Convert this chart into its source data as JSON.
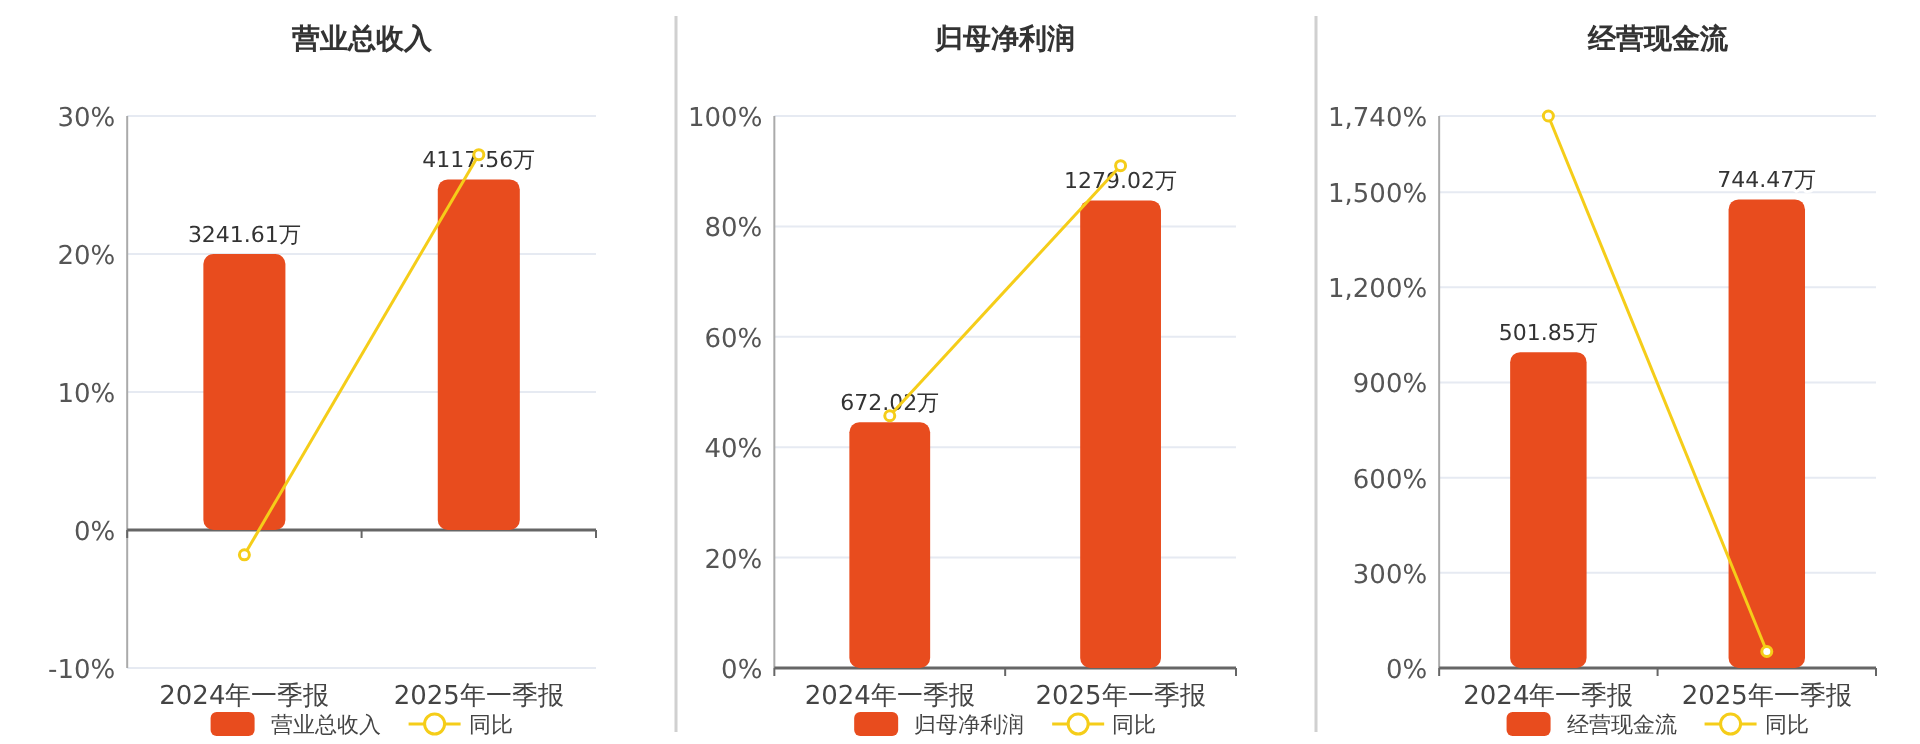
{
  "chart_data": [
    {
      "type": "bar",
      "title": "营业总收入",
      "categories": [
        "2024年一季报",
        "2025年一季报"
      ],
      "series": [
        {
          "name": "营业总收入",
          "type": "bar",
          "axis": "y2",
          "color": "#e84c1e",
          "values": [
            3241.61,
            4117.56
          ],
          "value_labels": [
            "3241.61万",
            "4117.56万"
          ]
        },
        {
          "name": "同比",
          "type": "line",
          "color": "#f5cd19",
          "marker": "circle",
          "values": [
            -1.8,
            27.2
          ]
        }
      ],
      "ylim": [
        -10,
        30
      ],
      "yticks": [
        {
          "value": -10,
          "label": "-10%"
        },
        {
          "value": 0,
          "label": "0%"
        },
        {
          "value": 10,
          "label": "10%"
        },
        {
          "value": 20,
          "label": "20%"
        },
        {
          "value": 30,
          "label": "30%"
        }
      ],
      "y2lim": [
        -1621,
        4862
      ],
      "grid": "y",
      "legend": "bottom"
    },
    {
      "type": "bar",
      "title": "归母净利润",
      "categories": [
        "2024年一季报",
        "2025年一季报"
      ],
      "series": [
        {
          "name": "归母净利润",
          "type": "bar",
          "axis": "y2",
          "color": "#e84c1e",
          "values": [
            672.02,
            1279.02
          ],
          "value_labels": [
            "672.02万",
            "1279.02万"
          ]
        },
        {
          "name": "同比",
          "type": "line",
          "color": "#f5cd19",
          "marker": "circle",
          "values": [
            45.7,
            91.0
          ]
        }
      ],
      "ylim": [
        0,
        100
      ],
      "yticks": [
        {
          "value": 0,
          "label": "0%"
        },
        {
          "value": 20,
          "label": "20%"
        },
        {
          "value": 40,
          "label": "40%"
        },
        {
          "value": 60,
          "label": "60%"
        },
        {
          "value": 80,
          "label": "80%"
        },
        {
          "value": 100,
          "label": "100%"
        }
      ],
      "y2lim": [
        0,
        1510
      ],
      "grid": "y",
      "legend": "bottom"
    },
    {
      "type": "bar",
      "title": "经营现金流",
      "categories": [
        "2024年一季报",
        "2025年一季报"
      ],
      "series": [
        {
          "name": "经营现金流",
          "type": "bar",
          "axis": "y2",
          "color": "#e84c1e",
          "values": [
            501.85,
            744.47
          ],
          "value_labels": [
            "501.85万",
            "744.47万"
          ]
        },
        {
          "name": "同比",
          "type": "line",
          "color": "#f5cd19",
          "marker": "circle",
          "values": [
            1740,
            52
          ]
        }
      ],
      "ylim": [
        0,
        1740
      ],
      "yticks": [
        {
          "value": 0,
          "label": "0%"
        },
        {
          "value": 300,
          "label": "300%"
        },
        {
          "value": 600,
          "label": "600%"
        },
        {
          "value": 900,
          "label": "900%"
        },
        {
          "value": 1200,
          "label": "1,200%"
        },
        {
          "value": 1500,
          "label": "1,500%"
        },
        {
          "value": 1740,
          "label": "1,740%"
        }
      ],
      "y2lim": [
        0,
        877
      ],
      "grid": "y",
      "legend": "bottom"
    }
  ]
}
